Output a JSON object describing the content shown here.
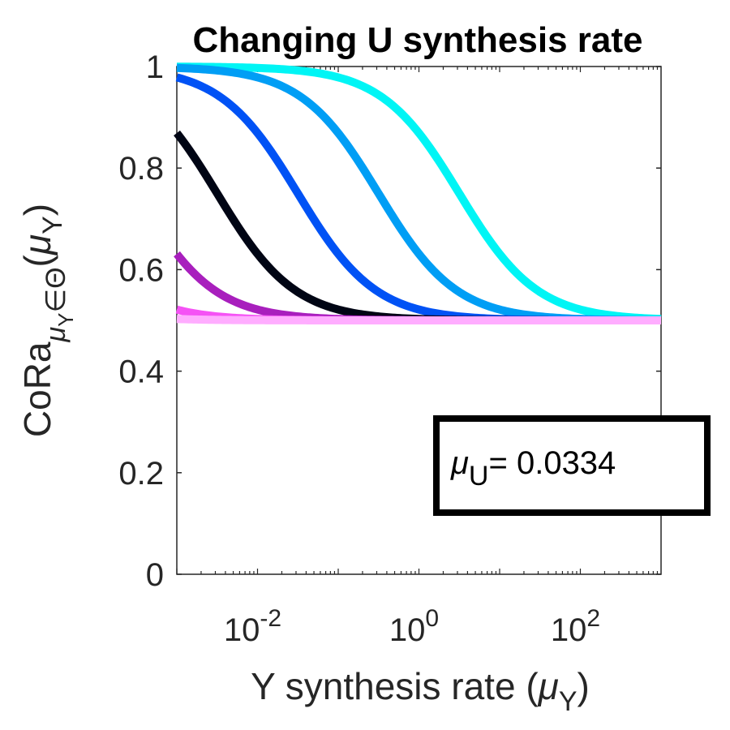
{
  "chart_data": {
    "type": "line",
    "title": "Changing U synthesis rate",
    "xlabel": {
      "main": "Y synthesis rate (",
      "mu": "μ",
      "sub": "Y",
      "close": ")"
    },
    "ylabel": {
      "main": "CoRa",
      "sub_mu": "μ",
      "sub_Y": "Y",
      "sub_in": "∈Θ",
      "open": "(",
      "mu": "μ",
      "mu_sub": "Y",
      "close": ")"
    },
    "x_scale": "log",
    "xlim": [
      0.001,
      1000
    ],
    "ylim": [
      0,
      1
    ],
    "x_ticks": [
      {
        "value": 0.01,
        "base": "10",
        "exp": "-2"
      },
      {
        "value": 1,
        "base": "10",
        "exp": "0"
      },
      {
        "value": 100,
        "base": "10",
        "exp": "2"
      }
    ],
    "y_ticks": [
      {
        "value": 0,
        "label": "0"
      },
      {
        "value": 0.2,
        "label": "0.2"
      },
      {
        "value": 0.4,
        "label": "0.4"
      },
      {
        "value": 0.6,
        "label": "0.6"
      },
      {
        "value": 0.8,
        "label": "0.8"
      },
      {
        "value": 1,
        "label": "1"
      }
    ],
    "grid": false,
    "annotation": {
      "mu": "μ",
      "sub": "U",
      "text": "= 0.0334"
    },
    "series": [
      {
        "color": "#00f5f5",
        "midpoint_x": 3.16,
        "x": [
          0.001,
          0.01,
          0.1,
          1,
          10,
          100,
          1000
        ],
        "y": [
          1.0,
          1.0,
          0.995,
          0.92,
          0.7,
          0.56,
          0.52
        ]
      },
      {
        "color": "#009ef5",
        "midpoint_x": 0.316,
        "x": [
          0.001,
          0.01,
          0.1,
          1,
          10,
          100,
          1000
        ],
        "y": [
          1.0,
          0.99,
          0.92,
          0.71,
          0.56,
          0.515,
          0.505
        ]
      },
      {
        "color": "#0052f5",
        "midpoint_x": 0.0316,
        "x": [
          0.001,
          0.01,
          0.1,
          1,
          10,
          100,
          1000
        ],
        "y": [
          0.99,
          0.93,
          0.71,
          0.56,
          0.515,
          0.505,
          0.5
        ]
      },
      {
        "color": "#000514",
        "midpoint_x": 0.00316,
        "x": [
          0.001,
          0.01,
          0.1,
          1,
          10,
          100,
          1000
        ],
        "y": [
          0.91,
          0.71,
          0.56,
          0.515,
          0.505,
          0.5,
          0.5
        ]
      },
      {
        "color": "#a81fbd",
        "midpoint_x": 0.000316,
        "x": [
          0.001,
          0.01,
          0.1,
          1,
          10,
          100,
          1000
        ],
        "y": [
          0.71,
          0.56,
          0.515,
          0.505,
          0.5,
          0.5,
          0.5
        ]
      },
      {
        "color": "#f552f5",
        "midpoint_x": 3.16e-05,
        "x": [
          0.001,
          0.01,
          0.1,
          1,
          10,
          100,
          1000
        ],
        "y": [
          0.57,
          0.52,
          0.505,
          0.5,
          0.5,
          0.5,
          0.5
        ]
      },
      {
        "color": "#ffadff",
        "midpoint_x": 3.16e-06,
        "x": [
          0.001,
          0.01,
          0.1,
          1,
          10,
          100,
          1000
        ],
        "y": [
          0.52,
          0.505,
          0.5,
          0.5,
          0.5,
          0.5,
          0.5
        ]
      }
    ]
  }
}
